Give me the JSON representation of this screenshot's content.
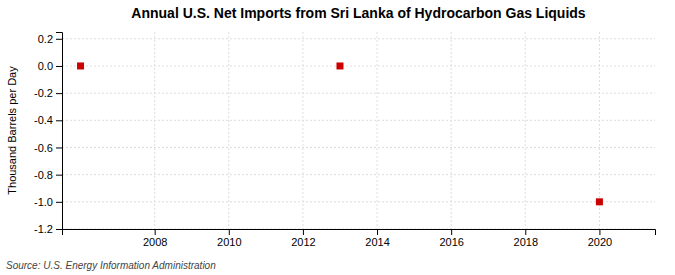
{
  "chart_data": {
    "type": "scatter",
    "title": "Annual U.S. Net Imports from Sri Lanka of Hydrocarbon Gas Liquids",
    "y_label": "Thousand Barrels per Day",
    "source": "Source: U.S. Energy Information Administration",
    "x": [
      2006,
      2013,
      2020
    ],
    "values": [
      0.0,
      0.0,
      -1.0
    ],
    "color": "#cc0000",
    "marker": "square",
    "xlim": [
      2005.5,
      2021.5
    ],
    "ylim": [
      -1.2,
      0.25
    ],
    "xticks": [
      2008,
      2010,
      2012,
      2014,
      2016,
      2018,
      2020
    ],
    "yticks": [
      -1.2,
      {
        "value": -1.0,
        "label": "-1.0"
      },
      -0.8,
      -0.6,
      -0.4,
      -0.2,
      {
        "value": 0.0,
        "label": "0.0"
      },
      0.2
    ],
    "grid": true
  }
}
